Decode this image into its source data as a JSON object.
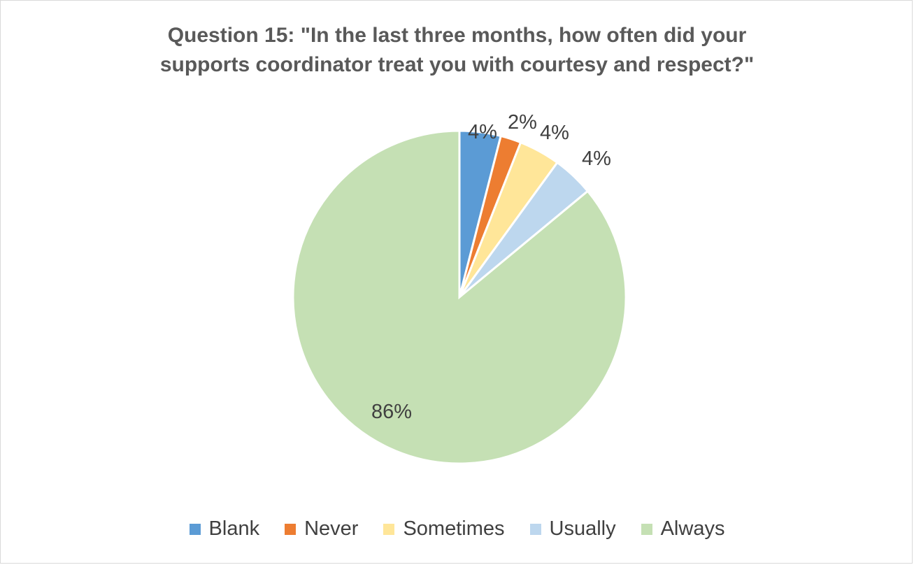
{
  "chart_data": {
    "type": "pie",
    "title_lines": [
      "Question 15: \"In the last three months, how often did your",
      "supports coordinator treat you with courtesy and respect?\""
    ],
    "categories": [
      "Blank",
      "Never",
      "Sometimes",
      "Usually",
      "Always"
    ],
    "values": [
      4,
      2,
      4,
      4,
      86
    ],
    "data_labels": [
      "4%",
      "2%",
      "4%",
      "4%",
      "86%"
    ],
    "colors": [
      "#5b9bd5",
      "#ed7d31",
      "#ffe699",
      "#bdd7ee",
      "#c5e0b4"
    ],
    "legend_position": "bottom"
  }
}
